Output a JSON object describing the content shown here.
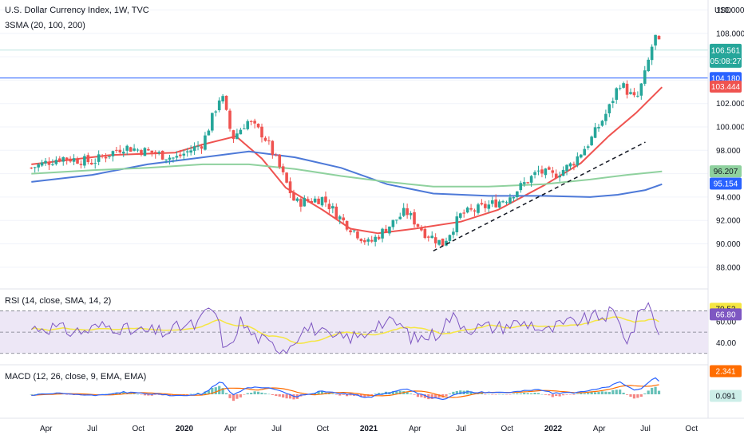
{
  "header": {
    "title": "U.S. Dollar Currency Index, 1W, TVC",
    "indicator": "3SMA (20, 100, 200)",
    "currency": "USD"
  },
  "colors": {
    "up": "#26a69a",
    "down": "#ef5350",
    "sma20": "#ef5350",
    "sma100": "#4d79d8",
    "sma200": "#8fd19e",
    "hline": "#2962ff",
    "trend": "#131722",
    "rsi": "#7e57c2",
    "rsi_sma": "#f5e642",
    "rsi_band": "#ede7f6",
    "macd": "#2962ff",
    "signal": "#ff6d00"
  },
  "badges": {
    "price": "106.561",
    "countdown": "05:08:27",
    "hline": "104.180",
    "sma20": "103.444",
    "sma200": "96.207",
    "sma100": "95.154",
    "rsi": "70.53",
    "rsi_sma": "66.80",
    "macd": "2.341",
    "hist": "0.091"
  },
  "panes": {
    "rsi_label": "RSI (14, close, SMA, 14, 2)",
    "macd_label": "MACD (12, 26, close, 9, EMA, EMA)"
  },
  "chart_data": {
    "type": "candlestick",
    "title": "U.S. Dollar Currency Index, 1W, TVC",
    "ylim": [
      87,
      110
    ],
    "y_ticks": [
      "110.000",
      "108.000",
      "102.000",
      "100.000",
      "98.000",
      "94.000",
      "92.000",
      "90.000",
      "88.000"
    ],
    "x_ticks": [
      "Apr",
      "Jul",
      "Oct",
      "2020",
      "Apr",
      "Jul",
      "Oct",
      "2021",
      "Apr",
      "Jul",
      "Oct",
      "2022",
      "Apr",
      "Jul",
      "Oct"
    ],
    "horizontal_line": 104.18,
    "last_close": 106.561,
    "price_path": [
      [
        2019.17,
        96.5
      ],
      [
        2019.33,
        97.4
      ],
      [
        2019.5,
        97.0
      ],
      [
        2019.67,
        98.3
      ],
      [
        2019.83,
        97.8
      ],
      [
        2019.95,
        97.3
      ],
      [
        2020.1,
        98.6
      ],
      [
        2020.2,
        102.9
      ],
      [
        2020.26,
        99.0
      ],
      [
        2020.34,
        100.5
      ],
      [
        2020.43,
        99.3
      ],
      [
        2020.5,
        97.1
      ],
      [
        2020.6,
        93.5
      ],
      [
        2020.75,
        93.9
      ],
      [
        2020.85,
        92.1
      ],
      [
        2021.0,
        90.0
      ],
      [
        2021.2,
        92.8
      ],
      [
        2021.3,
        91.0
      ],
      [
        2021.4,
        90.0
      ],
      [
        2021.5,
        92.5
      ],
      [
        2021.6,
        93.0
      ],
      [
        2021.75,
        93.9
      ],
      [
        2021.92,
        96.2
      ],
      [
        2022.0,
        95.8
      ],
      [
        2022.1,
        96.8
      ],
      [
        2022.2,
        98.8
      ],
      [
        2022.3,
        101.5
      ],
      [
        2022.36,
        103.8
      ],
      [
        2022.45,
        102.2
      ],
      [
        2022.5,
        104.6
      ],
      [
        2022.55,
        107.8
      ],
      [
        2022.59,
        106.56
      ]
    ],
    "series": [
      {
        "name": "SMA 20",
        "points": [
          [
            2019.17,
            96.8
          ],
          [
            2019.6,
            97.6
          ],
          [
            2019.95,
            97.8
          ],
          [
            2020.1,
            98.5
          ],
          [
            2020.28,
            99.2
          ],
          [
            2020.42,
            97.3
          ],
          [
            2020.55,
            94.8
          ],
          [
            2020.75,
            92.9
          ],
          [
            2020.9,
            91.3
          ],
          [
            2021.05,
            90.9
          ],
          [
            2021.25,
            91.3
          ],
          [
            2021.5,
            91.9
          ],
          [
            2021.7,
            92.9
          ],
          [
            2021.95,
            95.0
          ],
          [
            2022.15,
            96.9
          ],
          [
            2022.3,
            99.2
          ],
          [
            2022.45,
            101.2
          ],
          [
            2022.59,
            103.4
          ]
        ]
      },
      {
        "name": "SMA 100",
        "points": [
          [
            2019.17,
            95.3
          ],
          [
            2019.5,
            95.9
          ],
          [
            2019.8,
            96.8
          ],
          [
            2020.1,
            97.4
          ],
          [
            2020.35,
            97.9
          ],
          [
            2020.6,
            97.4
          ],
          [
            2020.85,
            96.5
          ],
          [
            2021.1,
            95.1
          ],
          [
            2021.35,
            94.3
          ],
          [
            2021.65,
            94.1
          ],
          [
            2021.95,
            94.1
          ],
          [
            2022.2,
            94.0
          ],
          [
            2022.35,
            94.2
          ],
          [
            2022.5,
            94.6
          ],
          [
            2022.59,
            95.1
          ]
        ]
      },
      {
        "name": "SMA 200",
        "points": [
          [
            2019.17,
            96.0
          ],
          [
            2019.5,
            96.3
          ],
          [
            2019.8,
            96.5
          ],
          [
            2020.1,
            96.8
          ],
          [
            2020.35,
            96.8
          ],
          [
            2020.6,
            96.4
          ],
          [
            2020.85,
            95.8
          ],
          [
            2021.1,
            95.3
          ],
          [
            2021.35,
            94.9
          ],
          [
            2021.65,
            94.9
          ],
          [
            2021.95,
            95.1
          ],
          [
            2022.2,
            95.5
          ],
          [
            2022.4,
            95.9
          ],
          [
            2022.59,
            96.2
          ]
        ]
      }
    ],
    "trendline": [
      [
        2021.35,
        89.4
      ],
      [
        2022.5,
        98.7
      ]
    ],
    "rsi": {
      "ylim": [
        20,
        90
      ],
      "ticks": [
        "40.00",
        "60.00"
      ],
      "bands": [
        30,
        70
      ]
    },
    "macd": {
      "zero_line": true
    }
  }
}
